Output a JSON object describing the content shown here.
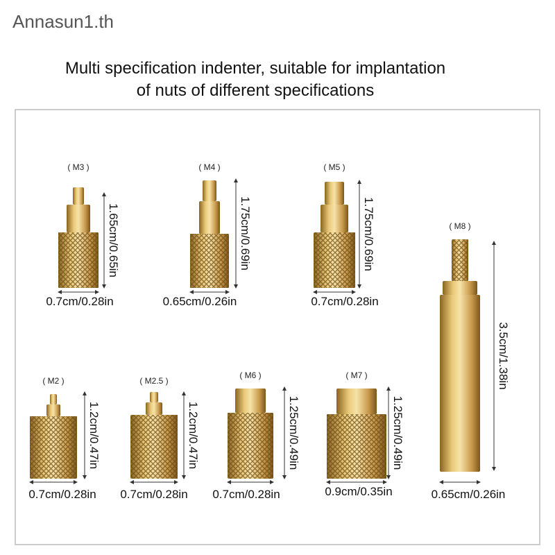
{
  "watermark": "Annasun1.th",
  "heading": {
    "lines": [
      "Multi specification indenter, suitable for implantation",
      "of nuts of different specifications"
    ]
  },
  "items": [
    {
      "label": "( M3 )",
      "height": "1.65cm/0.65in",
      "width": "0.7cm/0.28in"
    },
    {
      "label": "( M4 )",
      "height": "1.75cm/0.69in",
      "width": "0.65cm/0.26in"
    },
    {
      "label": "( M5 )",
      "height": "1.75cm/0.69in",
      "width": "0.7cm/0.28in"
    },
    {
      "label": "( M8 )",
      "height": "3.5cm/1.38in",
      "width": "0.65cm/0.26in"
    },
    {
      "label": "( M2 )",
      "height": "1.2cm/0.47in",
      "width": "0.7cm/0.28in"
    },
    {
      "label": "( M2.5 )",
      "height": "1.2cm/0.47in",
      "width": "0.7cm/0.28in"
    },
    {
      "label": "( M6 )",
      "height": "1.25cm/0.49in",
      "width": "0.7cm/0.28in"
    },
    {
      "label": "( M7 )",
      "height": "1.25cm/0.49in",
      "width": "0.9cm/0.35in"
    }
  ]
}
